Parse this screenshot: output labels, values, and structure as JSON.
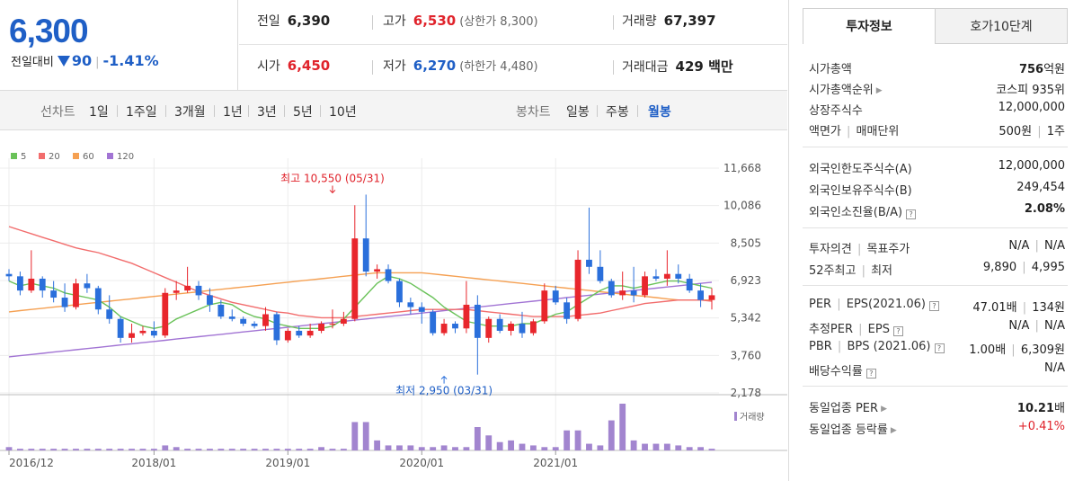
{
  "price": {
    "current": "6,300",
    "change_label": "전일대비",
    "change_amount": "90",
    "change_percent": "-1.41%"
  },
  "summary": {
    "prev_close": {
      "label": "전일",
      "value": "6,390"
    },
    "high": {
      "label": "고가",
      "value": "6,530",
      "sub": "(상한가 8,300)"
    },
    "volume": {
      "label": "거래량",
      "value": "67,397"
    },
    "open": {
      "label": "시가",
      "value": "6,450"
    },
    "low": {
      "label": "저가",
      "value": "6,270",
      "sub": "(하한가 4,480)"
    },
    "trade_amount": {
      "label": "거래대금",
      "value": "429 백만"
    }
  },
  "period_bar": {
    "line_label": "선차트",
    "line_periods": [
      "1일",
      "1주일",
      "3개월",
      "1년",
      "3년",
      "5년",
      "10년"
    ],
    "candle_label": "봉차트",
    "candle_periods": [
      "일봉",
      "주봉",
      "월봉"
    ],
    "active_candle": "월봉"
  },
  "right_panel": {
    "tabs": [
      "투자정보",
      "호가10단계"
    ],
    "rows": [
      {
        "k": "시가총액",
        "v_bold": "756",
        "v": "억원"
      },
      {
        "k": "시가총액순위",
        "caret": true,
        "v": "코스피 935위"
      },
      {
        "k": "상장주식수",
        "v": "12,000,000"
      },
      {
        "k": "액면가",
        "k2": "매매단위",
        "v": "500원",
        "v2": "1주"
      },
      {
        "k": "외국인한도주식수(A)",
        "v": "12,000,000"
      },
      {
        "k": "외국인보유주식수(B)",
        "v": "249,454"
      },
      {
        "k": "외국인소진율(B/A)",
        "help": true,
        "v_bold": "2.08%"
      },
      {
        "k": "투자의견",
        "k2": "목표주가",
        "v": "N/A",
        "v2": "N/A"
      },
      {
        "k": "52주최고",
        "k2": "최저",
        "v": "9,890",
        "v2": "4,995"
      },
      {
        "k": "PER",
        "k2": "EPS(2021.06)",
        "help": true,
        "v": "47.01배",
        "v2": "134원"
      },
      {
        "k": "추정PER",
        "k2": "EPS",
        "help": true,
        "v": "N/A",
        "v2": "N/A"
      },
      {
        "k": "PBR",
        "k2": "BPS (2021.06)",
        "help": true,
        "v": "1.00배",
        "v2": "6,309원"
      },
      {
        "k": "배당수익률",
        "help": true,
        "v": "N/A"
      },
      {
        "k": "동일업종 PER",
        "caret": true,
        "v_bold": "10.21",
        "v": "배"
      },
      {
        "k": "동일업종 등락률",
        "caret": true,
        "v": "+0.41%",
        "red": true
      }
    ]
  },
  "chart_data": {
    "type": "candlestick",
    "interval": "monthly",
    "legend": [
      {
        "name": "5",
        "color": "#6ac259"
      },
      {
        "name": "20",
        "color": "#f26d6d"
      },
      {
        "name": "60",
        "color": "#f5a052"
      },
      {
        "name": "120",
        "color": "#a274d4"
      }
    ],
    "y_ticks": [
      "11,668",
      "10,086",
      "8,505",
      "6,923",
      "5,342",
      "3,760",
      "2,178"
    ],
    "y_range": [
      2178,
      11668
    ],
    "x_ticks": [
      {
        "label": "2016/12",
        "index": 0
      },
      {
        "label": "2018/01",
        "index": 13
      },
      {
        "label": "2019/01",
        "index": 25
      },
      {
        "label": "2020/01",
        "index": 37
      },
      {
        "label": "2021/01",
        "index": 49
      }
    ],
    "annotation_high": {
      "label": "최고 10,550 (05/31)",
      "index": 29,
      "value": 10550
    },
    "annotation_low": {
      "label": "최저 2,950 (03/31)",
      "index": 39,
      "value": 2950
    },
    "volume_label": "거래량",
    "candles": [
      [
        7200,
        7400,
        6900,
        7100
      ],
      [
        7100,
        7300,
        6300,
        6500
      ],
      [
        6500,
        8200,
        6400,
        7000
      ],
      [
        7000,
        7100,
        6200,
        6500
      ],
      [
        6500,
        6900,
        6000,
        6200
      ],
      [
        6200,
        6800,
        5600,
        5800
      ],
      [
        5800,
        7000,
        5700,
        6800
      ],
      [
        6800,
        7200,
        6400,
        6600
      ],
      [
        6600,
        6700,
        5500,
        5700
      ],
      [
        5700,
        6300,
        5100,
        5300
      ],
      [
        5300,
        5400,
        4300,
        4500
      ],
      [
        4500,
        5100,
        4300,
        4700
      ],
      [
        4700,
        5000,
        4600,
        4800
      ],
      [
        4800,
        5200,
        4500,
        4600
      ],
      [
        4600,
        6600,
        4500,
        6400
      ],
      [
        6400,
        6900,
        6100,
        6500
      ],
      [
        6500,
        7500,
        6400,
        6700
      ],
      [
        6700,
        6900,
        6100,
        6300
      ],
      [
        6300,
        6600,
        5600,
        5900
      ],
      [
        5900,
        6100,
        5300,
        5400
      ],
      [
        5400,
        5700,
        5200,
        5300
      ],
      [
        5300,
        5400,
        5000,
        5100
      ],
      [
        5100,
        5200,
        4900,
        5000
      ],
      [
        5000,
        5800,
        4800,
        5500
      ],
      [
        5500,
        5600,
        4200,
        4400
      ],
      [
        4400,
        4900,
        4300,
        4800
      ],
      [
        4800,
        5000,
        4500,
        4600
      ],
      [
        4600,
        5100,
        4500,
        4800
      ],
      [
        4800,
        5200,
        4700,
        5100
      ],
      [
        5100,
        5700,
        4900,
        5100
      ],
      [
        5100,
        5600,
        5000,
        5300
      ],
      [
        5300,
        10100,
        5200,
        8700
      ],
      [
        8700,
        10550,
        7100,
        7300
      ],
      [
        7300,
        7600,
        7000,
        7400
      ],
      [
        7400,
        7600,
        6800,
        6900
      ],
      [
        6900,
        7000,
        5800,
        6000
      ],
      [
        6000,
        6200,
        5500,
        5800
      ],
      [
        5800,
        6000,
        5100,
        5600
      ],
      [
        5600,
        5700,
        4600,
        4700
      ],
      [
        4700,
        5300,
        4600,
        5100
      ],
      [
        5100,
        5200,
        4700,
        4900
      ],
      [
        4900,
        6900,
        4700,
        5900
      ],
      [
        5900,
        6300,
        2950,
        4500
      ],
      [
        4500,
        5400,
        4300,
        5300
      ],
      [
        5300,
        5500,
        4700,
        4800
      ],
      [
        4800,
        5200,
        4600,
        5100
      ],
      [
        5100,
        5600,
        4500,
        4700
      ],
      [
        4700,
        5300,
        4600,
        5200
      ],
      [
        5200,
        6800,
        5100,
        6500
      ],
      [
        6500,
        6700,
        5900,
        6000
      ],
      [
        6000,
        6200,
        5100,
        5300
      ],
      [
        5300,
        8200,
        5200,
        7800
      ],
      [
        7800,
        10000,
        7200,
        7500
      ],
      [
        7500,
        8200,
        6800,
        6900
      ],
      [
        6900,
        7000,
        6200,
        6300
      ],
      [
        6300,
        7300,
        6100,
        6500
      ],
      [
        6500,
        7500,
        6000,
        6300
      ],
      [
        6300,
        7300,
        6200,
        7100
      ],
      [
        7100,
        7400,
        6900,
        7000
      ],
      [
        7000,
        8200,
        6700,
        7200
      ],
      [
        7200,
        7600,
        6800,
        7000
      ],
      [
        7000,
        7200,
        6400,
        6500
      ],
      [
        6500,
        6800,
        5800,
        6100
      ],
      [
        6100,
        6600,
        5700,
        6300
      ]
    ],
    "volumes": [
      2,
      1,
      1,
      1,
      1,
      1,
      1,
      1,
      1,
      1,
      1,
      1,
      1,
      1,
      3,
      2,
      1,
      1,
      1,
      1,
      1,
      1,
      1,
      1,
      1,
      1,
      1,
      1,
      2,
      1,
      1,
      17,
      17,
      6,
      3,
      3,
      3,
      2,
      2,
      3,
      2,
      2,
      14,
      9,
      5,
      6,
      4,
      3,
      2,
      2,
      12,
      12,
      4,
      3,
      18,
      28,
      6,
      4,
      4,
      4,
      3,
      2,
      2,
      1
    ],
    "ma5": [
      6900,
      6700,
      6800,
      6700,
      6600,
      6400,
      6300,
      6200,
      6100,
      5800,
      5400,
      5200,
      5000,
      4900,
      5000,
      5300,
      5500,
      5700,
      5900,
      6000,
      5900,
      5600,
      5400,
      5300,
      5100,
      5000,
      4900,
      4900,
      4900,
      5000,
      5300,
      5800,
      6300,
      6800,
      7100,
      7000,
      6800,
      6500,
      6200,
      5800,
      5500,
      5200,
      5100,
      5000,
      5000,
      5000,
      5100,
      5100,
      5300,
      5500,
      5600,
      5900,
      6200,
      6500,
      6700,
      6700,
      6600,
      6700,
      6800,
      6900,
      6900,
      6800,
      6700,
      6600
    ],
    "ma20": [
      9200,
      9050,
      8900,
      8750,
      8600,
      8450,
      8300,
      8200,
      8100,
      7950,
      7800,
      7650,
      7450,
      7250,
      7050,
      6850,
      6650,
      6450,
      6300,
      6150,
      6000,
      5900,
      5800,
      5700,
      5600,
      5550,
      5450,
      5400,
      5350,
      5350,
      5350,
      5400,
      5450,
      5500,
      5550,
      5600,
      5650,
      5700,
      5700,
      5700,
      5700,
      5700,
      5650,
      5600,
      5550,
      5500,
      5450,
      5400,
      5400,
      5400,
      5400,
      5450,
      5500,
      5550,
      5650,
      5750,
      5850,
      5950,
      6000,
      6050,
      6100,
      6100,
      6100,
      6050
    ],
    "ma60": [
      5600,
      5650,
      5700,
      5750,
      5800,
      5850,
      5900,
      5950,
      6000,
      6050,
      6100,
      6150,
      6200,
      6250,
      6300,
      6350,
      6400,
      6450,
      6500,
      6550,
      6600,
      6650,
      6700,
      6750,
      6800,
      6850,
      6900,
      6950,
      7000,
      7050,
      7100,
      7150,
      7200,
      7250,
      7250,
      7250,
      7250,
      7250,
      7200,
      7150,
      7100,
      7050,
      7000,
      6950,
      6900,
      6850,
      6800,
      6750,
      6700,
      6650,
      6600,
      6550,
      6500,
      6450,
      6400,
      6350,
      6300,
      6250,
      6200,
      6150,
      6100,
      6100,
      6100,
      6100
    ],
    "ma120": [
      3700,
      3750,
      3800,
      3850,
      3900,
      3950,
      4000,
      4050,
      4100,
      4150,
      4200,
      4250,
      4300,
      4350,
      4400,
      4450,
      4500,
      4550,
      4600,
      4650,
      4700,
      4750,
      4800,
      4850,
      4900,
      4950,
      5000,
      5050,
      5100,
      5150,
      5200,
      5250,
      5300,
      5350,
      5400,
      5450,
      5500,
      5550,
      5600,
      5650,
      5700,
      5750,
      5800,
      5850,
      5900,
      5950,
      6000,
      6050,
      6100,
      6150,
      6200,
      6250,
      6300,
      6350,
      6400,
      6450,
      6500,
      6550,
      6600,
      6650,
      6700,
      6750,
      6800,
      6850
    ]
  }
}
